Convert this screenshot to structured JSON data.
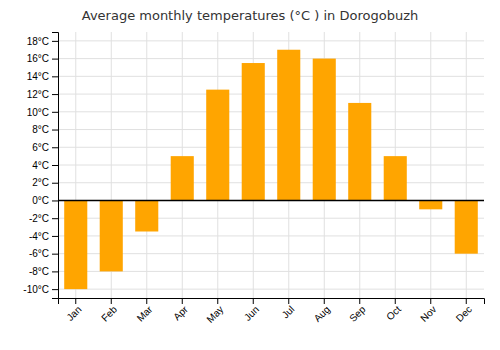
{
  "chart_data": {
    "type": "bar",
    "title": "Average monthly temperatures (°C ) in Dorogobuzh",
    "categories": [
      "Jan",
      "Feb",
      "Mar",
      "Apr",
      "May",
      "Jun",
      "Jul",
      "Aug",
      "Sep",
      "Oct",
      "Nov",
      "Dec"
    ],
    "values": [
      -10,
      -8,
      -3.5,
      5,
      12.5,
      15.5,
      17,
      16,
      11,
      5,
      -1,
      -6
    ],
    "color": "#FFA500",
    "ylim": [
      -11,
      19
    ],
    "yticks": [
      {
        "value": -10,
        "label": "-10°C"
      },
      {
        "value": -8,
        "label": "-8°C"
      },
      {
        "value": -6,
        "label": "-6°C"
      },
      {
        "value": -4,
        "label": "-4°C"
      },
      {
        "value": -2,
        "label": "-2°C"
      },
      {
        "value": 0,
        "label": "0°C"
      },
      {
        "value": 2,
        "label": "2°C"
      },
      {
        "value": 4,
        "label": "4°C"
      },
      {
        "value": 6,
        "label": "6°C"
      },
      {
        "value": 8,
        "label": "8°C"
      },
      {
        "value": 10,
        "label": "10°C"
      },
      {
        "value": 12,
        "label": "12°C"
      },
      {
        "value": 14,
        "label": "14°C"
      },
      {
        "value": 16,
        "label": "16°C"
      },
      {
        "value": 18,
        "label": "18°C"
      }
    ],
    "grid": true
  }
}
